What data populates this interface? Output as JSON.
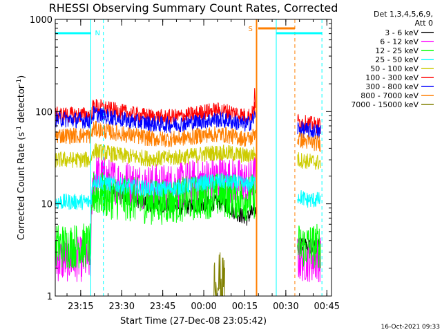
{
  "chart_data": {
    "type": "line",
    "title": "RHESSI Observing Summary Count Rates, Corrected",
    "xlabel": "Start Time (27-Dec-08 23:05:42)",
    "ylabel_main": "Corrected Count Rate (s",
    "ylabel_sup1": "-1",
    "ylabel_mid": " detector",
    "ylabel_sup2": "-1",
    "ylabel_end": ")",
    "yscale": "log",
    "ylim": [
      1,
      1000
    ],
    "xlim_minutes": [
      0,
      101
    ],
    "y_ticks": [
      "1",
      "10",
      "100",
      "1000"
    ],
    "x_ticks": [
      {
        "label": "23:15",
        "min": 9.3
      },
      {
        "label": "23:30",
        "min": 24.3
      },
      {
        "label": "23:45",
        "min": 39.3
      },
      {
        "label": "00:00",
        "min": 54.3
      },
      {
        "label": "00:15",
        "min": 69.3
      },
      {
        "label": "00:30",
        "min": 84.3
      },
      {
        "label": "00:45",
        "min": 99.3
      }
    ],
    "legend_header": [
      "Det 1,3,4,5,6,9,",
      "Att 0"
    ],
    "series": [
      {
        "name": "3 - 6 keV",
        "color": "#000000",
        "x": [
          20,
          25,
          30,
          35,
          40,
          45,
          50,
          55,
          60,
          62,
          64,
          66,
          68,
          70,
          72,
          73,
          89,
          92,
          97
        ],
        "y": [
          14,
          12.5,
          11,
          10,
          9.5,
          9.2,
          9.5,
          10,
          10.5,
          10,
          9,
          8,
          7.5,
          7,
          8,
          8.5,
          3.5,
          3.5,
          3.5
        ]
      },
      {
        "name": "6 - 12 keV",
        "color": "#ff00ff",
        "x": [
          0,
          13,
          14,
          20,
          25,
          30,
          35,
          40,
          45,
          50,
          55,
          60,
          65,
          70,
          72,
          73,
          89,
          92,
          97
        ],
        "y": [
          2.5,
          2.5,
          20,
          18,
          17,
          16,
          15.5,
          15.5,
          16,
          17,
          18,
          19,
          18,
          17,
          18,
          20,
          2.5,
          2.5,
          2.5
        ]
      },
      {
        "name": "12 - 25 keV",
        "color": "#00ff00",
        "x": [
          0,
          13,
          14,
          20,
          25,
          30,
          35,
          40,
          45,
          50,
          55,
          60,
          65,
          70,
          72,
          73,
          89,
          92,
          97
        ],
        "y": [
          3.5,
          3.5,
          13,
          12,
          11.5,
          11,
          10.5,
          10.5,
          11,
          11.5,
          12,
          12.5,
          12,
          11.5,
          12,
          12,
          3.5,
          3.5,
          3.5
        ]
      },
      {
        "name": "25 - 50 keV",
        "color": "#00ffff",
        "x": [
          0,
          13,
          14,
          20,
          25,
          30,
          35,
          40,
          45,
          50,
          55,
          60,
          65,
          70,
          72,
          73,
          89,
          92,
          97
        ],
        "y": [
          10.5,
          10.5,
          18,
          16.5,
          15.5,
          15,
          14.5,
          14.5,
          15,
          16,
          17,
          17.5,
          17,
          16,
          17,
          17,
          12,
          11,
          11
        ]
      },
      {
        "name": "50 - 100 keV",
        "color": "#cccc00",
        "x": [
          0,
          13,
          14,
          20,
          25,
          30,
          35,
          40,
          45,
          50,
          55,
          60,
          65,
          70,
          72,
          73,
          89,
          92,
          97
        ],
        "y": [
          30,
          30,
          38,
          35,
          33,
          32,
          31,
          31,
          32,
          33,
          35,
          36,
          35,
          33,
          34,
          35,
          30,
          29,
          28
        ]
      },
      {
        "name": "100 - 300 keV",
        "color": "#ff0000",
        "x": [
          0,
          13,
          14,
          20,
          25,
          30,
          35,
          40,
          45,
          50,
          55,
          60,
          65,
          70,
          72,
          73,
          89,
          92,
          97
        ],
        "y": [
          92,
          92,
          115,
          105,
          98,
          92,
          88,
          86,
          88,
          93,
          100,
          103,
          98,
          88,
          95,
          110,
          78,
          74,
          70
        ]
      },
      {
        "name": "300 - 800 keV",
        "color": "#0000ff",
        "x": [
          0,
          13,
          14,
          20,
          25,
          30,
          35,
          40,
          45,
          50,
          55,
          60,
          65,
          70,
          72,
          73,
          89,
          92,
          97
        ],
        "y": [
          83,
          80,
          95,
          87,
          81,
          77,
          74,
          72,
          73,
          76,
          80,
          82,
          78,
          72,
          78,
          90,
          65,
          62,
          60
        ]
      },
      {
        "name": "800 - 7000 keV",
        "color": "#ff7f00",
        "x": [
          0,
          13,
          14,
          20,
          25,
          30,
          35,
          40,
          45,
          50,
          55,
          60,
          65,
          70,
          72,
          73,
          89,
          92,
          97
        ],
        "y": [
          55,
          55,
          65,
          60,
          57,
          54,
          51,
          50,
          51,
          53,
          56,
          57,
          54,
          50,
          52,
          60,
          50,
          47,
          45
        ]
      },
      {
        "name": "7000 - 15000 keV",
        "color": "#808000",
        "x": [
          58,
          59,
          60,
          61,
          62
        ],
        "y": [
          1.6,
          1.3,
          1.6,
          1.3,
          1.6
        ]
      }
    ],
    "annotations": {
      "timestamp": "16-Oct-2021 09:33",
      "flag_N": "N",
      "flag_S": "S"
    }
  }
}
